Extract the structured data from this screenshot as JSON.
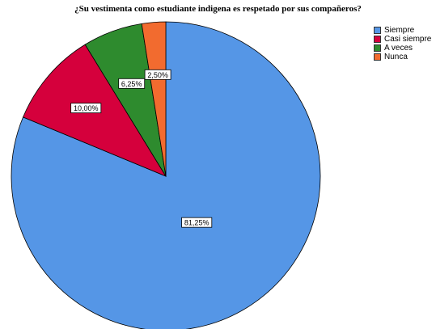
{
  "chart_data": {
    "type": "pie",
    "title": "¿Su vestimenta como estudiante indigena es respetado por sus compañeros?",
    "categories": [
      "Siempre",
      "Casi siempre",
      "A veces",
      "Nunca"
    ],
    "values": [
      81.25,
      10.0,
      6.25,
      2.5
    ],
    "data_labels": [
      "81,25%",
      "10,00%",
      "6,25%",
      "2,50%"
    ],
    "colors": [
      "#5596e6",
      "#d5003c",
      "#2e8b2e",
      "#f26b2f"
    ],
    "legend": "top-right"
  }
}
